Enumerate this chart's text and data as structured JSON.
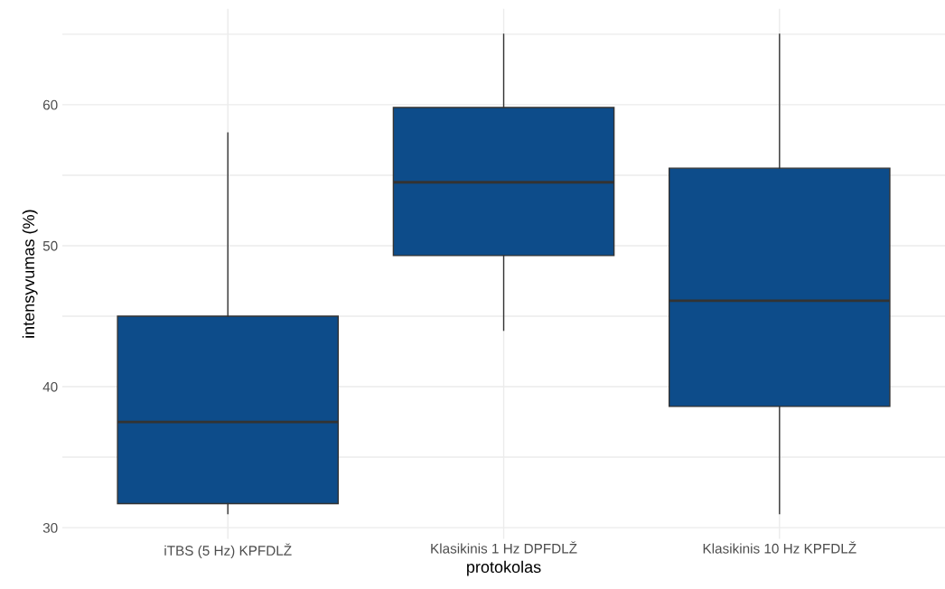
{
  "chart_data": {
    "type": "box",
    "xlabel": "protokolas",
    "ylabel": "intensyvumas (%)",
    "categories": [
      "iTBS (5 Hz) KPFDLŽ",
      "Klasikinis 1 Hz DPFDLŽ",
      "Klasikinis 10 Hz KPFDLŽ"
    ],
    "boxes": [
      {
        "low": 31,
        "q1": 31.7,
        "median": 37.5,
        "q3": 45,
        "high": 58
      },
      {
        "low": 44,
        "q1": 49.3,
        "median": 54.5,
        "q3": 59.8,
        "high": 65
      },
      {
        "low": 31,
        "q1": 38.6,
        "median": 46.1,
        "q3": 55.5,
        "high": 65
      }
    ],
    "color": "#0d4c8a",
    "ylim": [
      29.2,
      66.8
    ],
    "yticks": [
      30,
      {
        "value": 35,
        "label": null
      },
      40,
      {
        "value": 45,
        "label": null
      },
      50,
      {
        "value": 55,
        "label": null
      },
      60,
      {
        "value": 65,
        "label": null
      }
    ],
    "grid": true
  }
}
